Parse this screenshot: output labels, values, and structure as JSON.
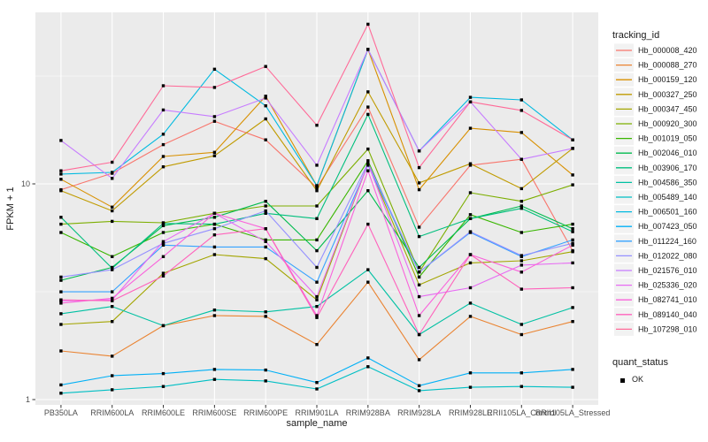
{
  "figure": {
    "background": "#FFFFFF",
    "panel_background": "#EBEBEB",
    "grid_color": "#FFFFFF",
    "tick_color": "#333333",
    "tick_text_color": "#4D4D4D",
    "title_text_color": "#1A1A1A",
    "point_color": "#000000",
    "legend_key_background": "#F2F2F2"
  },
  "chart_data": {
    "type": "line",
    "title": "",
    "xlabel": "sample_name",
    "ylabel": "FPKM + 1",
    "y_scale": "log10",
    "ylim": [
      0.95,
      62
    ],
    "y_ticks": [
      10,
      1
    ],
    "y_minor_ticks": [
      31.62,
      3.162
    ],
    "grid": true,
    "legend_position": "right",
    "legend_title": "tracking_id",
    "point_legend": {
      "title": "quant_status",
      "label": "OK"
    },
    "categories": [
      "PB350LA",
      "RRIM600LA",
      "RRIM600LE",
      "RRIM600SE",
      "RRIM600PE",
      "RRIM901LA",
      "RRIM928BA",
      "RRIM928LA",
      "RRIM928LE",
      "RRII105LA_Control",
      "RRII105LA_Stressed"
    ],
    "series": [
      {
        "name": "Hb_000008_420",
        "color": "#F8766D",
        "values": [
          9.4,
          11.2,
          15.2,
          19.5,
          16.0,
          9.6,
          22.7,
          6.3,
          12.2,
          13.0,
          4.9
        ]
      },
      {
        "name": "Hb_000088_270",
        "color": "#EA8331",
        "values": [
          1.68,
          1.59,
          2.2,
          2.45,
          2.43,
          1.8,
          3.5,
          1.53,
          2.43,
          2.0,
          2.3
        ]
      },
      {
        "name": "Hb_000159_120",
        "color": "#D89000",
        "values": [
          10.5,
          7.8,
          13.4,
          14.0,
          25.5,
          9.8,
          42.0,
          9.4,
          18.1,
          17.3,
          11.0
        ]
      },
      {
        "name": "Hb_000327_250",
        "color": "#C09B00",
        "values": [
          9.3,
          7.5,
          12.0,
          13.5,
          20.0,
          9.3,
          26.7,
          10.1,
          12.4,
          9.5,
          14.6
        ]
      },
      {
        "name": "Hb_000347_450",
        "color": "#A3A500",
        "values": [
          2.23,
          2.3,
          3.85,
          4.7,
          4.5,
          2.9,
          12.4,
          3.4,
          4.3,
          4.4,
          4.85
        ]
      },
      {
        "name": "Hb_000920_300",
        "color": "#7CAE00",
        "values": [
          6.5,
          6.7,
          6.6,
          7.3,
          7.9,
          7.9,
          14.5,
          3.9,
          9.1,
          8.3,
          9.9
        ]
      },
      {
        "name": "Hb_001019_050",
        "color": "#39B600",
        "values": [
          5.95,
          4.6,
          5.95,
          6.5,
          5.5,
          5.5,
          12.8,
          3.7,
          7.2,
          5.95,
          6.5
        ]
      },
      {
        "name": "Hb_002046_010",
        "color": "#00BB4E",
        "values": [
          3.57,
          4.1,
          6.4,
          7.0,
          8.3,
          4.9,
          9.3,
          4.1,
          6.9,
          7.9,
          6.2
        ]
      },
      {
        "name": "Hb_003906_170",
        "color": "#00BF7D",
        "values": [
          7.0,
          4.06,
          6.55,
          6.5,
          7.3,
          6.9,
          21.0,
          5.7,
          6.9,
          7.7,
          6.0
        ]
      },
      {
        "name": "Hb_004586_350",
        "color": "#00C1A3",
        "values": [
          2.5,
          2.7,
          2.2,
          2.6,
          2.55,
          2.7,
          4.0,
          2.0,
          2.8,
          2.23,
          2.67
        ]
      },
      {
        "name": "Hb_005489_140",
        "color": "#00BFC4",
        "values": [
          1.07,
          1.11,
          1.15,
          1.24,
          1.22,
          1.12,
          1.42,
          1.1,
          1.14,
          1.15,
          1.14
        ]
      },
      {
        "name": "Hb_006501_160",
        "color": "#00BAE0",
        "values": [
          11.1,
          11.3,
          17.0,
          34.0,
          23.0,
          9.8,
          42.0,
          14.2,
          25.2,
          24.5,
          16.0
        ]
      },
      {
        "name": "Hb_007423_050",
        "color": "#00B0F6",
        "values": [
          1.17,
          1.29,
          1.32,
          1.38,
          1.37,
          1.2,
          1.56,
          1.16,
          1.33,
          1.33,
          1.38
        ]
      },
      {
        "name": "Hb_011224_160",
        "color": "#35A2FF",
        "values": [
          3.16,
          3.16,
          5.2,
          5.1,
          5.1,
          3.5,
          12.2,
          3.9,
          5.95,
          4.6,
          5.5
        ]
      },
      {
        "name": "Hb_012022_080",
        "color": "#9590FF",
        "values": [
          3.7,
          4.0,
          5.3,
          6.2,
          7.5,
          4.1,
          12.5,
          3.9,
          6.0,
          4.65,
          5.3
        ]
      },
      {
        "name": "Hb_021576_010",
        "color": "#C77CFF",
        "values": [
          15.9,
          10.6,
          22.0,
          20.5,
          25.0,
          12.2,
          42.0,
          14.2,
          24.0,
          13.0,
          14.6
        ]
      },
      {
        "name": "Hb_025336_020",
        "color": "#E76BF3",
        "values": [
          2.87,
          2.9,
          5.4,
          7.3,
          5.4,
          3.0,
          12.4,
          3.0,
          3.3,
          4.2,
          4.3
        ]
      },
      {
        "name": "Hb_082741_010",
        "color": "#FA62DB",
        "values": [
          2.8,
          2.95,
          4.6,
          7.3,
          6.2,
          2.45,
          11.5,
          2.45,
          4.7,
          3.9,
          5.2
        ]
      },
      {
        "name": "Hb_089140_040",
        "color": "#FF62BC",
        "values": [
          2.9,
          2.87,
          3.74,
          5.8,
          6.2,
          2.4,
          6.5,
          2.0,
          4.7,
          3.25,
          3.3
        ]
      },
      {
        "name": "Hb_107298_010",
        "color": "#FF6A98",
        "values": [
          11.5,
          12.6,
          28.5,
          28.0,
          35.0,
          18.7,
          55.0,
          11.9,
          24.0,
          21.9,
          16.0
        ]
      }
    ]
  }
}
